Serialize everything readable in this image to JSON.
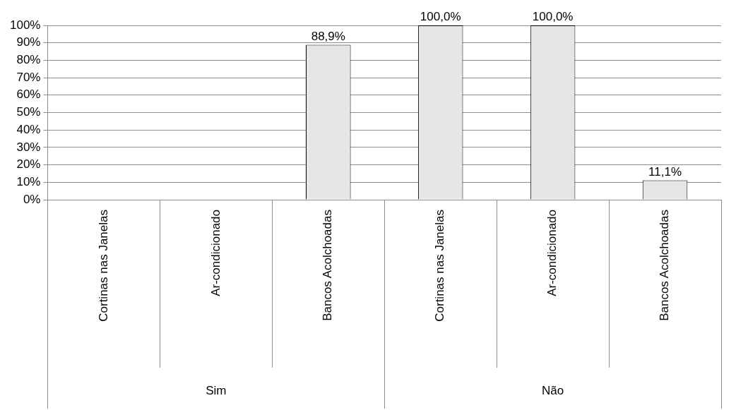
{
  "chart_data": {
    "type": "bar",
    "categories": [
      "Cortinas nas Janelas",
      "Ar-condicionado",
      "Bancos Acolchoadas",
      "Cortinas nas Janelas",
      "Ar-condicionado",
      "Bancos Acolchoadas"
    ],
    "values": [
      0,
      0,
      88.9,
      100,
      100,
      11.1
    ],
    "value_labels": [
      null,
      null,
      "88,9%",
      "100,0%",
      "100,0%",
      "11,1%"
    ],
    "color": "#e6e6e6",
    "ylim": [
      0,
      100
    ],
    "yticks": [
      {
        "value": 0,
        "label": "0%"
      },
      {
        "value": 10,
        "label": "10%"
      },
      {
        "value": 20,
        "label": "20%"
      },
      {
        "value": 30,
        "label": "30%"
      },
      {
        "value": 40,
        "label": "40%"
      },
      {
        "value": 50,
        "label": "50%"
      },
      {
        "value": 60,
        "label": "60%"
      },
      {
        "value": 70,
        "label": "70%"
      },
      {
        "value": 80,
        "label": "80%"
      },
      {
        "value": 90,
        "label": "90%"
      },
      {
        "value": 100,
        "label": "100%"
      }
    ],
    "grid": "y",
    "legend": false,
    "annotations": [
      "Sim",
      "Não"
    ]
  }
}
